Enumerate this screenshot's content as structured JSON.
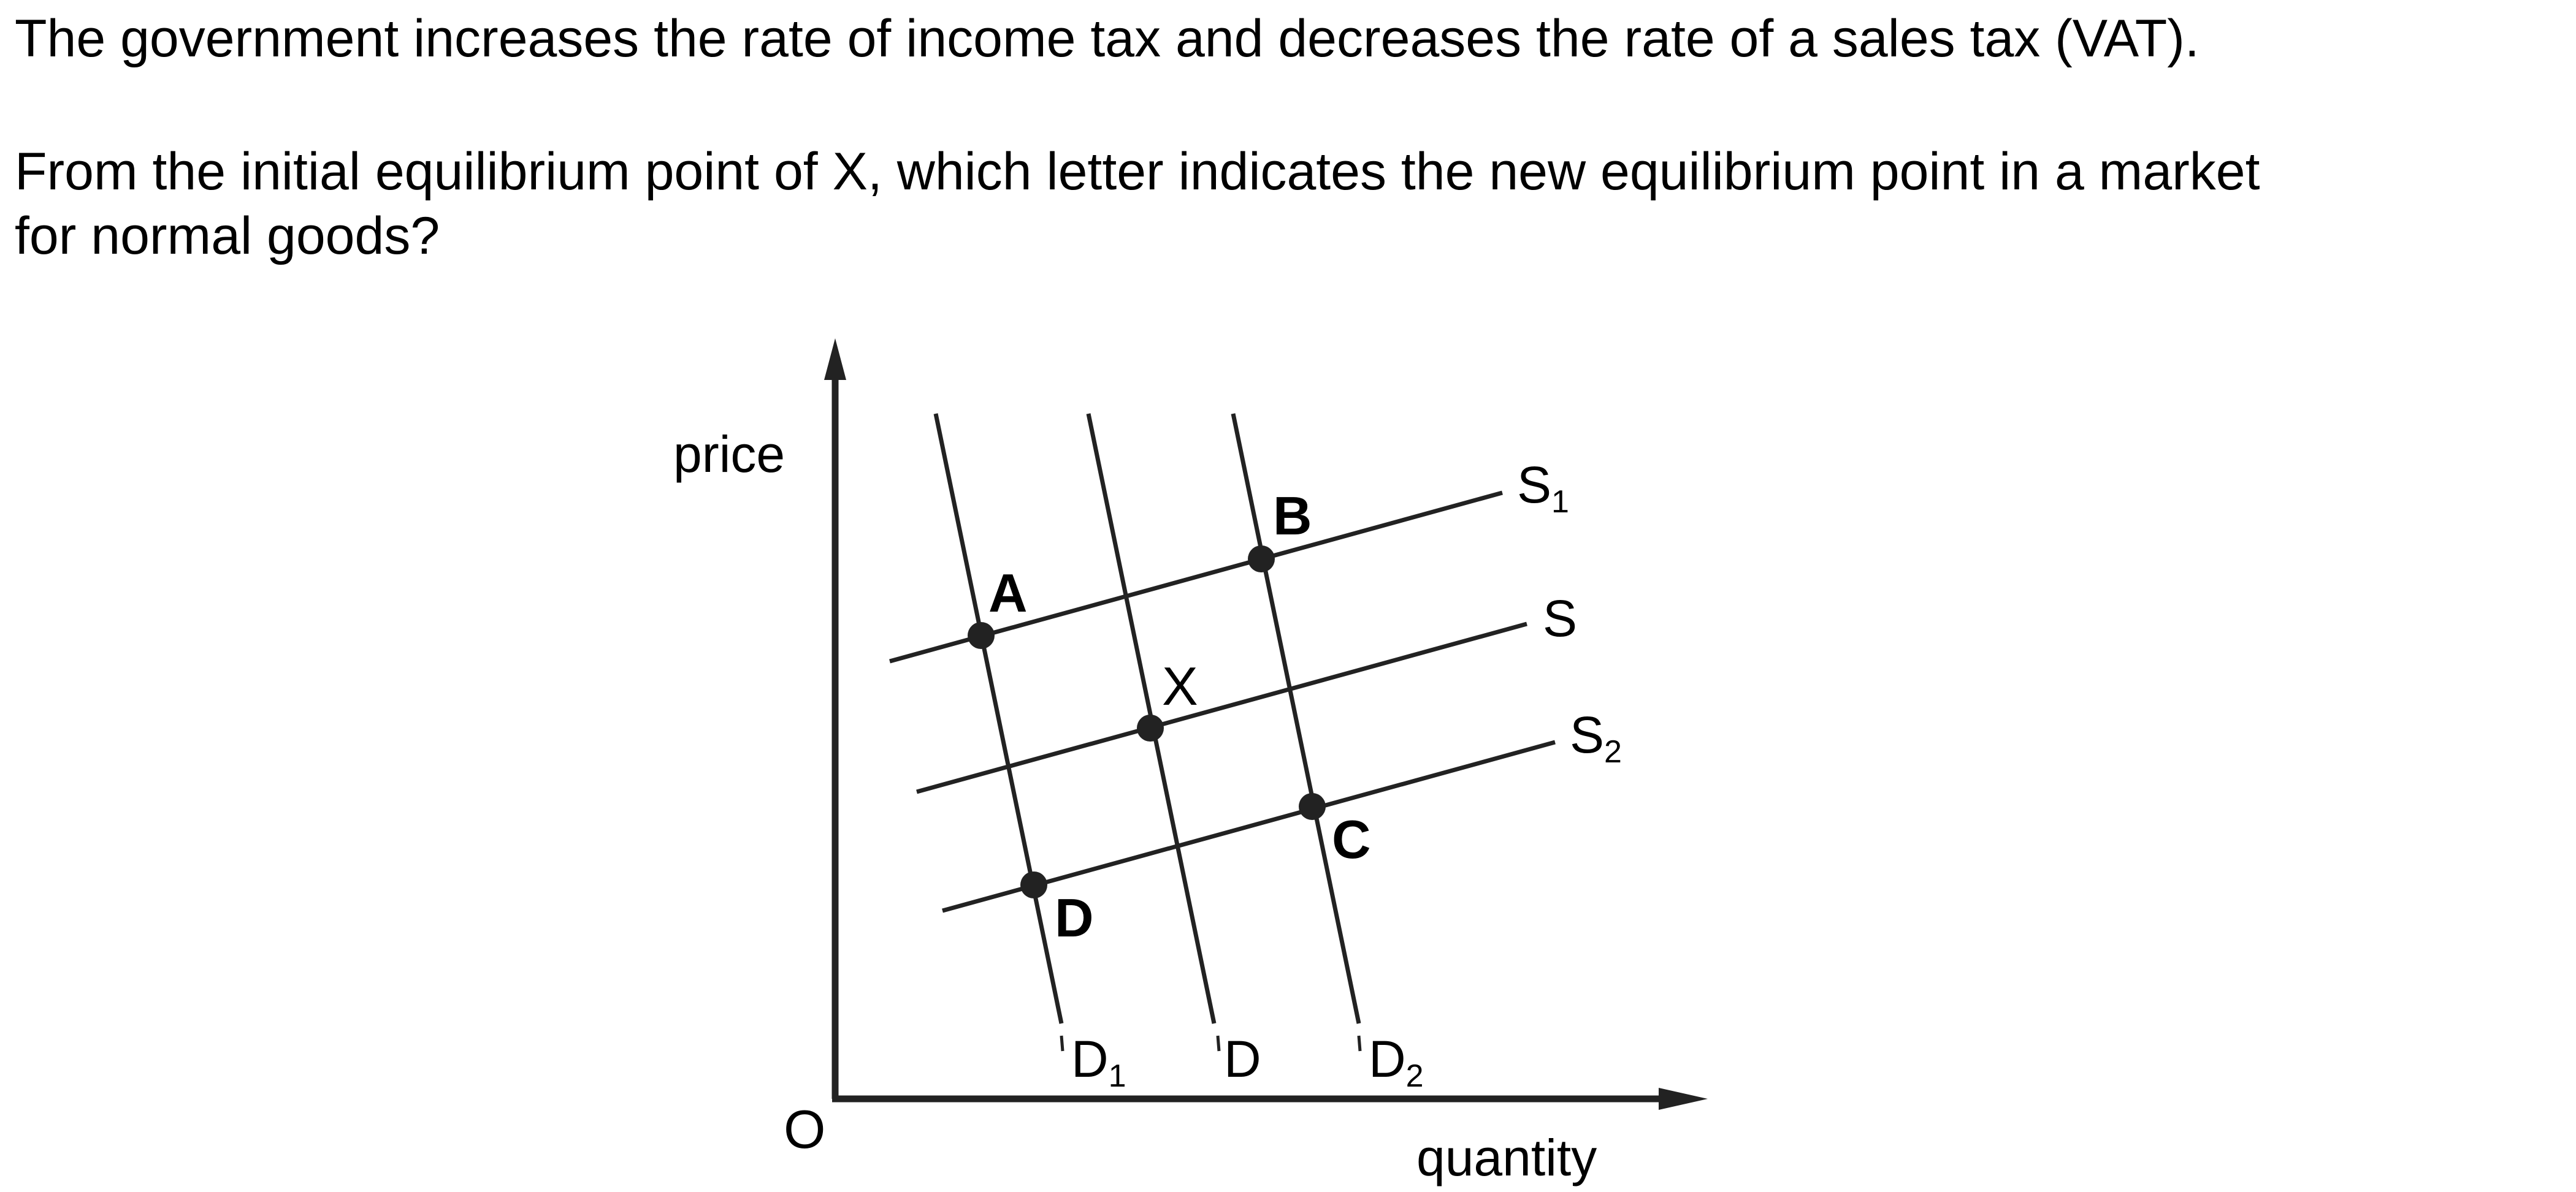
{
  "question": {
    "line1": "The government increases the rate of income tax and decreases the rate of a sales tax (VAT).",
    "line2": "From the initial equilibrium point of X, which letter indicates the new equilibrium point in a market",
    "line3": "for normal goods?"
  },
  "diagram": {
    "axes": {
      "y_label": "price",
      "x_label": "quantity",
      "origin": "O"
    },
    "curves": {
      "supply": [
        {
          "name": "S",
          "subscript": "1"
        },
        {
          "name": "S",
          "subscript": ""
        },
        {
          "name": "S",
          "subscript": "2"
        }
      ],
      "demand": [
        {
          "name": "D",
          "subscript": "1"
        },
        {
          "name": "D",
          "subscript": ""
        },
        {
          "name": "D",
          "subscript": "2"
        }
      ]
    },
    "points": [
      {
        "label": "A",
        "bold": true
      },
      {
        "label": "B",
        "bold": true
      },
      {
        "label": "X",
        "bold": false
      },
      {
        "label": "C",
        "bold": true
      },
      {
        "label": "D",
        "bold": true
      }
    ],
    "colors": {
      "line": "#222222",
      "text": "#000000",
      "background": "#ffffff"
    }
  }
}
